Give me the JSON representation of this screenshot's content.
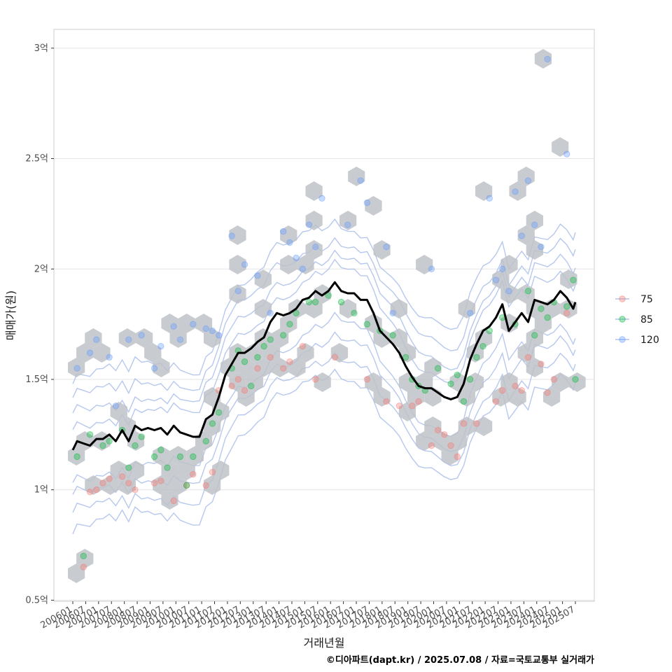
{
  "chart_data": {
    "type": "scatter",
    "title": "",
    "xlabel": "거래년월",
    "ylabel": "매매가(원)",
    "caption": "©디아파트(dapt.kr) / 2025.07.08 / 자료=국토교통부 실거래가",
    "y_unit": "억",
    "ylim": [
      0.5,
      3.0
    ],
    "xlim": [
      "2006-01",
      "2025-07"
    ],
    "yticks": [
      {
        "value": 0.5,
        "label": "0.5억"
      },
      {
        "value": 1.0,
        "label": "1억"
      },
      {
        "value": 1.5,
        "label": "1.5억"
      },
      {
        "value": 2.0,
        "label": "2억"
      },
      {
        "value": 2.5,
        "label": "2.5억"
      },
      {
        "value": 3.0,
        "label": "3억"
      }
    ],
    "xticks": [
      "200601",
      "200607",
      "200701",
      "200707",
      "200801",
      "200807",
      "200901",
      "200907",
      "201001",
      "201007",
      "201101",
      "201107",
      "201201",
      "201207",
      "201301",
      "201307",
      "201401",
      "201407",
      "201501",
      "201507",
      "201601",
      "201607",
      "201701",
      "201707",
      "201801",
      "201807",
      "201901",
      "201907",
      "202001",
      "202007",
      "202101",
      "202107",
      "202201",
      "202207",
      "202301",
      "202307",
      "202401",
      "202407",
      "202501",
      "202507"
    ],
    "grid": true,
    "legend": {
      "position": "right",
      "entries": [
        {
          "label": "75",
          "color": "#F8766D"
        },
        {
          "label": "85",
          "color": "#00BA38"
        },
        {
          "label": "120",
          "color": "#619CFF"
        }
      ]
    },
    "colors": {
      "hex": "#BEC2C8",
      "trend": "#000000",
      "contour": "#9FB6E8",
      "grid": "#E5E5E5",
      "panel_border": "#CCCCCC"
    },
    "layers": [
      "hexbin density",
      "2d density contours",
      "scatter points by area",
      "moving median trend line"
    ],
    "trend_line": [
      [
        "2006-01",
        1.18
      ],
      [
        "2006-03",
        1.22
      ],
      [
        "2006-06",
        1.21
      ],
      [
        "2006-09",
        1.2
      ],
      [
        "2006-12",
        1.23
      ],
      [
        "2007-03",
        1.23
      ],
      [
        "2007-06",
        1.25
      ],
      [
        "2007-09",
        1.22
      ],
      [
        "2007-12",
        1.27
      ],
      [
        "2008-03",
        1.22
      ],
      [
        "2008-06",
        1.29
      ],
      [
        "2008-09",
        1.27
      ],
      [
        "2008-12",
        1.28
      ],
      [
        "2009-03",
        1.27
      ],
      [
        "2009-06",
        1.28
      ],
      [
        "2009-09",
        1.25
      ],
      [
        "2009-12",
        1.29
      ],
      [
        "2010-03",
        1.26
      ],
      [
        "2010-06",
        1.25
      ],
      [
        "2010-09",
        1.24
      ],
      [
        "2010-12",
        1.24
      ],
      [
        "2011-03",
        1.32
      ],
      [
        "2011-06",
        1.34
      ],
      [
        "2011-09",
        1.42
      ],
      [
        "2011-12",
        1.52
      ],
      [
        "2012-03",
        1.57
      ],
      [
        "2012-06",
        1.62
      ],
      [
        "2012-09",
        1.62
      ],
      [
        "2012-12",
        1.64
      ],
      [
        "2013-03",
        1.67
      ],
      [
        "2013-06",
        1.69
      ],
      [
        "2013-09",
        1.76
      ],
      [
        "2013-12",
        1.8
      ],
      [
        "2014-03",
        1.79
      ],
      [
        "2014-06",
        1.8
      ],
      [
        "2014-09",
        1.82
      ],
      [
        "2014-12",
        1.86
      ],
      [
        "2015-03",
        1.87
      ],
      [
        "2015-06",
        1.9
      ],
      [
        "2015-09",
        1.88
      ],
      [
        "2015-12",
        1.9
      ],
      [
        "2016-03",
        1.94
      ],
      [
        "2016-06",
        1.9
      ],
      [
        "2016-09",
        1.89
      ],
      [
        "2016-12",
        1.89
      ],
      [
        "2017-03",
        1.86
      ],
      [
        "2017-06",
        1.86
      ],
      [
        "2017-09",
        1.8
      ],
      [
        "2017-12",
        1.72
      ],
      [
        "2018-03",
        1.69
      ],
      [
        "2018-06",
        1.66
      ],
      [
        "2018-09",
        1.62
      ],
      [
        "2018-12",
        1.56
      ],
      [
        "2019-03",
        1.51
      ],
      [
        "2019-06",
        1.47
      ],
      [
        "2019-09",
        1.46
      ],
      [
        "2019-12",
        1.46
      ],
      [
        "2020-03",
        1.44
      ],
      [
        "2020-06",
        1.42
      ],
      [
        "2020-09",
        1.41
      ],
      [
        "2020-12",
        1.42
      ],
      [
        "2021-03",
        1.48
      ],
      [
        "2021-06",
        1.59
      ],
      [
        "2021-09",
        1.66
      ],
      [
        "2021-12",
        1.72
      ],
      [
        "2022-03",
        1.74
      ],
      [
        "2022-06",
        1.78
      ],
      [
        "2022-09",
        1.84
      ],
      [
        "2022-12",
        1.72
      ],
      [
        "2023-03",
        1.76
      ],
      [
        "2023-06",
        1.8
      ],
      [
        "2023-09",
        1.76
      ],
      [
        "2023-12",
        1.86
      ],
      [
        "2024-03",
        1.85
      ],
      [
        "2024-06",
        1.84
      ],
      [
        "2024-09",
        1.86
      ],
      [
        "2024-12",
        1.9
      ],
      [
        "2025-03",
        1.87
      ],
      [
        "2025-06",
        1.82
      ],
      [
        "2025-07",
        1.85
      ]
    ],
    "series": [
      {
        "name": "75",
        "points": [
          [
            "2006-06",
            0.65
          ],
          [
            "2006-09",
            0.99
          ],
          [
            "2006-12",
            1.0
          ],
          [
            "2007-03",
            1.03
          ],
          [
            "2007-06",
            1.05
          ],
          [
            "2007-12",
            1.06
          ],
          [
            "2008-03",
            1.03
          ],
          [
            "2008-06",
            1.0
          ],
          [
            "2009-03",
            1.03
          ],
          [
            "2009-06",
            1.04
          ],
          [
            "2009-12",
            0.95
          ],
          [
            "2010-06",
            1.02
          ],
          [
            "2010-09",
            1.07
          ],
          [
            "2011-03",
            1.02
          ],
          [
            "2011-06",
            1.08
          ],
          [
            "2011-09",
            1.45
          ],
          [
            "2012-03",
            1.47
          ],
          [
            "2012-06",
            1.5
          ],
          [
            "2012-09",
            1.45
          ],
          [
            "2013-03",
            1.55
          ],
          [
            "2013-09",
            1.6
          ],
          [
            "2014-03",
            1.55
          ],
          [
            "2014-06",
            1.58
          ],
          [
            "2014-12",
            1.65
          ],
          [
            "2015-06",
            1.5
          ],
          [
            "2016-03",
            1.6
          ],
          [
            "2017-06",
            1.5
          ],
          [
            "2018-03",
            1.4
          ],
          [
            "2018-09",
            1.38
          ],
          [
            "2019-03",
            1.38
          ],
          [
            "2019-06",
            1.4
          ],
          [
            "2019-12",
            1.2
          ],
          [
            "2020-03",
            1.27
          ],
          [
            "2020-06",
            1.25
          ],
          [
            "2020-09",
            1.2
          ],
          [
            "2020-12",
            1.15
          ],
          [
            "2021-03",
            1.3
          ],
          [
            "2021-09",
            1.3
          ],
          [
            "2022-06",
            1.4
          ],
          [
            "2022-09",
            1.45
          ],
          [
            "2023-03",
            1.47
          ],
          [
            "2023-06",
            1.45
          ],
          [
            "2023-09",
            1.6
          ],
          [
            "2024-03",
            1.57
          ],
          [
            "2024-06",
            1.44
          ],
          [
            "2024-09",
            1.5
          ],
          [
            "2025-03",
            1.8
          ]
        ]
      },
      {
        "name": "85",
        "points": [
          [
            "2006-03",
            1.15
          ],
          [
            "2006-06",
            0.7
          ],
          [
            "2006-09",
            1.25
          ],
          [
            "2007-03",
            1.2
          ],
          [
            "2007-06",
            1.22
          ],
          [
            "2007-12",
            1.27
          ],
          [
            "2008-03",
            1.1
          ],
          [
            "2008-06",
            1.2
          ],
          [
            "2008-09",
            1.24
          ],
          [
            "2009-03",
            1.15
          ],
          [
            "2009-06",
            1.18
          ],
          [
            "2009-09",
            1.1
          ],
          [
            "2010-03",
            1.15
          ],
          [
            "2010-06",
            1.02
          ],
          [
            "2010-09",
            1.15
          ],
          [
            "2011-03",
            1.22
          ],
          [
            "2011-06",
            1.3
          ],
          [
            "2011-09",
            1.35
          ],
          [
            "2012-03",
            1.55
          ],
          [
            "2012-06",
            1.63
          ],
          [
            "2012-09",
            1.58
          ],
          [
            "2012-12",
            1.47
          ],
          [
            "2013-03",
            1.6
          ],
          [
            "2013-06",
            1.65
          ],
          [
            "2013-09",
            1.68
          ],
          [
            "2014-03",
            1.7
          ],
          [
            "2014-06",
            1.75
          ],
          [
            "2014-09",
            1.8
          ],
          [
            "2015-03",
            1.85
          ],
          [
            "2015-06",
            1.85
          ],
          [
            "2015-12",
            1.88
          ],
          [
            "2016-06",
            1.85
          ],
          [
            "2016-12",
            1.8
          ],
          [
            "2017-06",
            1.75
          ],
          [
            "2017-12",
            1.72
          ],
          [
            "2018-06",
            1.7
          ],
          [
            "2018-12",
            1.6
          ],
          [
            "2019-03",
            1.5
          ],
          [
            "2019-06",
            1.47
          ],
          [
            "2019-09",
            1.45
          ],
          [
            "2020-03",
            1.55
          ],
          [
            "2020-09",
            1.48
          ],
          [
            "2020-12",
            1.52
          ],
          [
            "2021-03",
            1.4
          ],
          [
            "2021-06",
            1.5
          ],
          [
            "2021-09",
            1.6
          ],
          [
            "2021-12",
            1.65
          ],
          [
            "2022-03",
            1.72
          ],
          [
            "2022-09",
            1.78
          ],
          [
            "2023-03",
            1.75
          ],
          [
            "2023-09",
            1.9
          ],
          [
            "2023-12",
            1.7
          ],
          [
            "2024-03",
            1.82
          ],
          [
            "2024-06",
            1.78
          ],
          [
            "2024-09",
            1.85
          ],
          [
            "2025-03",
            1.83
          ],
          [
            "2025-06",
            1.95
          ],
          [
            "2025-07",
            1.5
          ]
        ]
      },
      {
        "name": "120",
        "points": [
          [
            "2006-03",
            1.55
          ],
          [
            "2006-09",
            1.62
          ],
          [
            "2006-12",
            1.68
          ],
          [
            "2007-06",
            1.6
          ],
          [
            "2007-09",
            1.38
          ],
          [
            "2008-03",
            1.68
          ],
          [
            "2008-09",
            1.7
          ],
          [
            "2009-03",
            1.55
          ],
          [
            "2009-06",
            1.65
          ],
          [
            "2009-12",
            1.74
          ],
          [
            "2010-03",
            1.68
          ],
          [
            "2010-09",
            1.75
          ],
          [
            "2011-03",
            1.73
          ],
          [
            "2011-06",
            1.72
          ],
          [
            "2011-09",
            1.7
          ],
          [
            "2012-03",
            2.15
          ],
          [
            "2012-06",
            1.9
          ],
          [
            "2012-09",
            2.02
          ],
          [
            "2013-03",
            1.97
          ],
          [
            "2013-09",
            1.8
          ],
          [
            "2014-03",
            2.17
          ],
          [
            "2014-06",
            2.12
          ],
          [
            "2014-09",
            2.05
          ],
          [
            "2014-12",
            2.0
          ],
          [
            "2015-03",
            2.2
          ],
          [
            "2015-06",
            2.1
          ],
          [
            "2015-09",
            2.32
          ],
          [
            "2016-09",
            2.2
          ],
          [
            "2017-03",
            2.4
          ],
          [
            "2017-06",
            2.3
          ],
          [
            "2018-03",
            2.1
          ],
          [
            "2018-06",
            1.8
          ],
          [
            "2019-12",
            2.0
          ],
          [
            "2021-06",
            1.8
          ],
          [
            "2022-03",
            2.32
          ],
          [
            "2022-06",
            1.95
          ],
          [
            "2022-09",
            2.0
          ],
          [
            "2022-12",
            1.9
          ],
          [
            "2023-03",
            2.35
          ],
          [
            "2023-06",
            2.15
          ],
          [
            "2023-09",
            2.4
          ],
          [
            "2023-12",
            2.2
          ],
          [
            "2024-03",
            2.1
          ],
          [
            "2024-06",
            2.95
          ],
          [
            "2025-03",
            2.52
          ]
        ]
      }
    ]
  }
}
